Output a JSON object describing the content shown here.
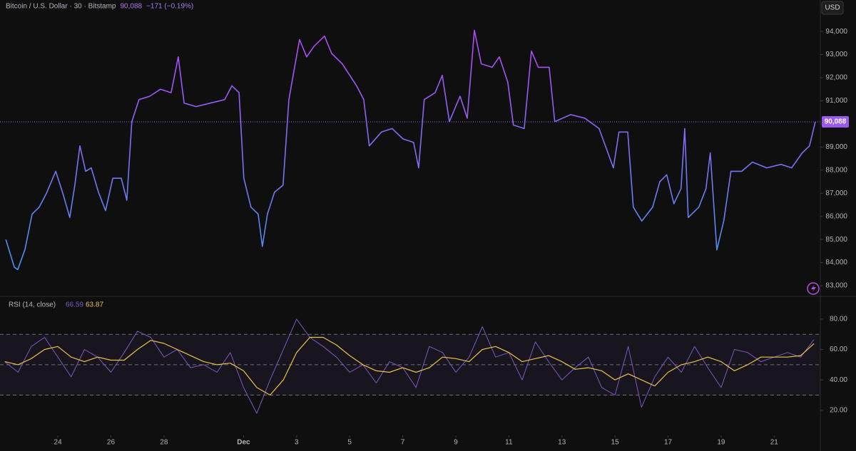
{
  "header": {
    "symbol": "Bitcoin / U.S. Dollar · 30 · Bitstamp",
    "change": "−171 (−0.19%)",
    "currency": "USD"
  },
  "chart_data": [
    {
      "type": "line",
      "x": [
        22.04,
        22.36,
        22.49,
        22.76,
        23.03,
        23.3,
        23.57,
        23.92,
        24.19,
        24.45,
        24.64,
        24.83,
        25.05,
        25.26,
        25.53,
        25.8,
        26.07,
        26.39,
        26.6,
        26.79,
        27.06,
        27.47,
        27.87,
        28.27,
        28.54,
        28.76,
        29.21,
        29.75,
        30.29,
        30.56,
        30.83,
        31.01,
        31.28,
        31.55,
        31.71,
        31.9,
        32.17,
        32.49,
        32.71,
        32.9,
        33.11,
        33.38,
        33.65,
        34.05,
        34.32,
        34.72,
        35.26,
        35.53,
        35.74,
        36.2,
        36.6,
        37.01,
        37.41,
        37.6,
        37.81,
        38.22,
        38.49,
        38.76,
        39.16,
        39.43,
        39.7,
        39.96,
        40.37,
        40.64,
        40.96,
        41.17,
        41.58,
        41.85,
        42.11,
        42.52,
        42.73,
        43.33,
        43.86,
        44.4,
        44.94,
        45.15,
        45.48,
        45.69,
        46.01,
        46.42,
        46.69,
        46.95,
        47.22,
        47.49,
        47.63,
        47.76,
        48.16,
        48.43,
        48.59,
        48.84,
        49.1,
        49.37,
        49.78,
        50.18,
        50.72,
        51.26,
        51.66,
        52.06,
        52.33,
        52.55
      ],
      "values": [
        85000,
        83800,
        83700,
        84570,
        86100,
        86400,
        87000,
        87950,
        87000,
        85950,
        87350,
        89050,
        87950,
        88100,
        87050,
        86250,
        87650,
        87650,
        86700,
        90100,
        91050,
        91200,
        91500,
        91350,
        92900,
        90900,
        90750,
        90900,
        91050,
        91650,
        91350,
        87650,
        86400,
        86100,
        84700,
        86100,
        87050,
        87350,
        91050,
        92300,
        93650,
        92900,
        93350,
        93800,
        93050,
        92600,
        91650,
        91050,
        89050,
        89650,
        89800,
        89350,
        89200,
        88100,
        91050,
        91350,
        92100,
        90100,
        91200,
        90250,
        94050,
        92600,
        92450,
        92900,
        91800,
        89950,
        89800,
        93150,
        92450,
        92450,
        90100,
        90400,
        90250,
        89800,
        88100,
        89650,
        89650,
        86400,
        85800,
        86400,
        87500,
        87800,
        86550,
        87200,
        89800,
        85950,
        86400,
        87200,
        88750,
        84550,
        85800,
        87950,
        87950,
        88350,
        88100,
        88250,
        88100,
        88750,
        89050,
        90088
      ],
      "gradient": [
        "#3d9cf0",
        "#c23cf5"
      ],
      "xlim": [
        21.82,
        52.74
      ],
      "ylim": [
        82570,
        95360
      ],
      "yticks": [
        {
          "value": 83000,
          "label": "83,000"
        },
        {
          "value": 84000,
          "label": "84,000"
        },
        {
          "value": 85000,
          "label": "85,000"
        },
        {
          "value": 86000,
          "label": "86,000"
        },
        {
          "value": 87000,
          "label": "87,000"
        },
        {
          "value": 88000,
          "label": "88,000"
        },
        {
          "value": 89000,
          "label": "89,000"
        },
        {
          "value": 90000,
          "label": "90,000"
        },
        {
          "value": 91000,
          "label": "91,000"
        },
        {
          "value": 92000,
          "label": "92,000"
        },
        {
          "value": 93000,
          "label": "93,000"
        },
        {
          "value": 94000,
          "label": "94,000"
        }
      ],
      "last_price": {
        "value": 90088,
        "label": "90,088"
      }
    },
    {
      "type": "line",
      "title": "RSI (14, close)",
      "x": [
        22,
        22.5,
        23,
        23.5,
        24,
        24.5,
        25,
        25.5,
        26,
        26.5,
        27,
        27.5,
        28,
        28.5,
        29,
        29.5,
        30,
        30.5,
        31,
        31.5,
        32,
        32.5,
        33,
        33.5,
        34,
        34.5,
        35,
        35.5,
        36,
        36.5,
        37,
        37.5,
        38,
        38.5,
        39,
        39.5,
        40,
        40.5,
        41,
        41.5,
        42,
        42.5,
        43,
        43.5,
        44,
        44.5,
        45,
        45.5,
        46,
        46.5,
        47,
        47.5,
        48,
        48.5,
        49,
        49.5,
        50,
        50.5,
        51,
        51.5,
        52,
        52.5
      ],
      "series": [
        {
          "color": "#7e57c2",
          "values": [
            52,
            45,
            62,
            68,
            55,
            42,
            60,
            55,
            45,
            58,
            72,
            68,
            55,
            60,
            48,
            50,
            45,
            58,
            35,
            18,
            40,
            60,
            80,
            68,
            62,
            55,
            45,
            50,
            38,
            52,
            48,
            35,
            62,
            58,
            45,
            55,
            75,
            55,
            58,
            40,
            65,
            52,
            40,
            48,
            55,
            35,
            30,
            62,
            22,
            42,
            55,
            45,
            62,
            48,
            35,
            60,
            58,
            52,
            55,
            58,
            55,
            66.59
          ],
          "last_label": "66.59"
        },
        {
          "color": "#e6c34a",
          "values": [
            52,
            50,
            54,
            60,
            62,
            55,
            52,
            55,
            53,
            53,
            60,
            66,
            64,
            60,
            56,
            52,
            50,
            51,
            46,
            35,
            30,
            40,
            58,
            68,
            68,
            63,
            56,
            50,
            46,
            45,
            48,
            45,
            48,
            55,
            54,
            52,
            60,
            62,
            58,
            52,
            54,
            56,
            52,
            47,
            48,
            46,
            40,
            44,
            40,
            36,
            45,
            50,
            52,
            55,
            52,
            46,
            50,
            55,
            55,
            55,
            56,
            63.87
          ],
          "last_label": "63.87"
        }
      ],
      "bands": [
        70,
        50,
        30
      ],
      "xlim": [
        21.82,
        52.74
      ],
      "ylim": [
        4,
        94
      ],
      "yticks": [
        {
          "value": 20,
          "label": "20.00"
        },
        {
          "value": 40,
          "label": "40.00"
        },
        {
          "value": 60,
          "label": "60.00"
        },
        {
          "value": 80,
          "label": "80.00"
        }
      ],
      "xticks": [
        {
          "value": 24,
          "label": "24"
        },
        {
          "value": 26,
          "label": "26"
        },
        {
          "value": 28,
          "label": "28"
        },
        {
          "value": 31,
          "label": "Dec"
        },
        {
          "value": 33,
          "label": "3"
        },
        {
          "value": 35,
          "label": "5"
        },
        {
          "value": 37,
          "label": "7"
        },
        {
          "value": 39,
          "label": "9"
        },
        {
          "value": 41,
          "label": "11"
        },
        {
          "value": 43,
          "label": "13"
        },
        {
          "value": 45,
          "label": "15"
        },
        {
          "value": 47,
          "label": "17"
        },
        {
          "value": 49,
          "label": "19"
        },
        {
          "value": 51,
          "label": "21"
        }
      ]
    }
  ]
}
